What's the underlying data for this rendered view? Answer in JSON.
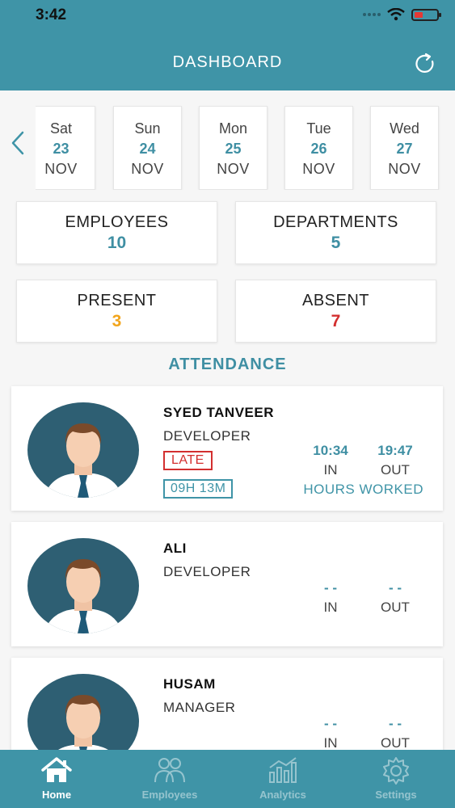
{
  "status_bar": {
    "time": "3:42"
  },
  "header": {
    "title": "DASHBOARD"
  },
  "dates": [
    {
      "dow": "Sat",
      "day": "23",
      "month": "NOV"
    },
    {
      "dow": "Sun",
      "day": "24",
      "month": "NOV"
    },
    {
      "dow": "Mon",
      "day": "25",
      "month": "NOV"
    },
    {
      "dow": "Tue",
      "day": "26",
      "month": "NOV"
    },
    {
      "dow": "Wed",
      "day": "27",
      "month": "NOV"
    }
  ],
  "stats": {
    "employees": {
      "label": "EMPLOYEES",
      "value": "10",
      "color": "#3f8fa3"
    },
    "departments": {
      "label": "DEPARTMENTS",
      "value": "5",
      "color": "#3f8fa3"
    },
    "present": {
      "label": "PRESENT",
      "value": "3",
      "color": "#f2a51c"
    },
    "absent": {
      "label": "ABSENT",
      "value": "7",
      "color": "#d32f2f"
    }
  },
  "attendance": {
    "title": "ATTENDANCE",
    "employees": [
      {
        "name": "SYED TANVEER",
        "role": "DEVELOPER",
        "status": "LATE",
        "hours": "09H 13M",
        "in_time": "10:34",
        "out_time": "19:47",
        "in_label": "IN",
        "out_label": "OUT",
        "hours_label": "HOURS WORKED"
      },
      {
        "name": "ALI",
        "role": "DEVELOPER",
        "in_time": "- -",
        "out_time": "- -",
        "in_label": "IN",
        "out_label": "OUT"
      },
      {
        "name": "HUSAM",
        "role": "MANAGER",
        "in_time": "- -",
        "out_time": "- -",
        "in_label": "IN",
        "out_label": "OUT"
      }
    ]
  },
  "tabbar": {
    "home": "Home",
    "employees": "Employees",
    "analytics": "Analytics",
    "settings": "Settings"
  },
  "icons": {
    "back": "chevron-left-icon",
    "refresh": "refresh-icon",
    "home": "home-icon",
    "employees": "users-icon",
    "analytics": "bar-chart-icon",
    "settings": "gear-icon"
  }
}
